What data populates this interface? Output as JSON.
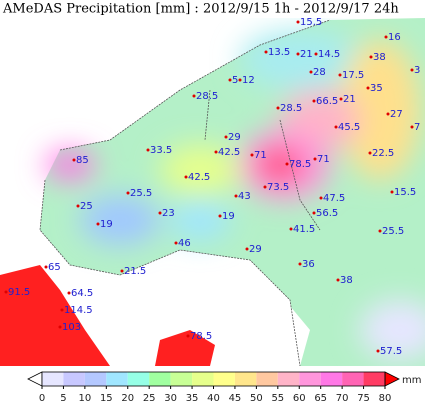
{
  "title": "AMeDAS Precipitation [mm] : 2012/9/15 1h - 2012/9/17 24h",
  "stations": [
    "15.5",
    "16",
    "13.5",
    "21",
    "14.5",
    "38",
    "28",
    "17.5",
    "5",
    "12",
    "35",
    "3",
    "28.5",
    "66.5",
    "21",
    "28.5",
    "27",
    "45.5",
    "7",
    "29",
    "33.5",
    "42.5",
    "71",
    "78.5",
    "71",
    "22.5",
    "85",
    "42.5",
    "73.5",
    "43",
    "25.5",
    "47.5",
    "15.5",
    "25",
    "23",
    "19",
    "56.5",
    "19",
    "41.5",
    "25.5",
    "46",
    "29",
    "36",
    "65",
    "21.5",
    "38",
    "91.5",
    "64.5",
    "114.5",
    "103",
    "78.5",
    "57.5"
  ],
  "colorbar": {
    "ticks": [
      0,
      5,
      10,
      15,
      20,
      25,
      30,
      35,
      40,
      45,
      50,
      55,
      60,
      65,
      70,
      75,
      80
    ],
    "unit": "mm",
    "colors": [
      "#ffffff",
      "#e6e6ff",
      "#c8c8ff",
      "#b4c8ff",
      "#a0e6ff",
      "#96ffe6",
      "#a0ffa0",
      "#c8ff96",
      "#e6ff8c",
      "#ffff8c",
      "#ffe68c",
      "#ffc8a0",
      "#ffb4c8",
      "#ff96dc",
      "#ff78e6",
      "#ff64b4",
      "#ff3c64",
      "#ff0000"
    ]
  }
}
